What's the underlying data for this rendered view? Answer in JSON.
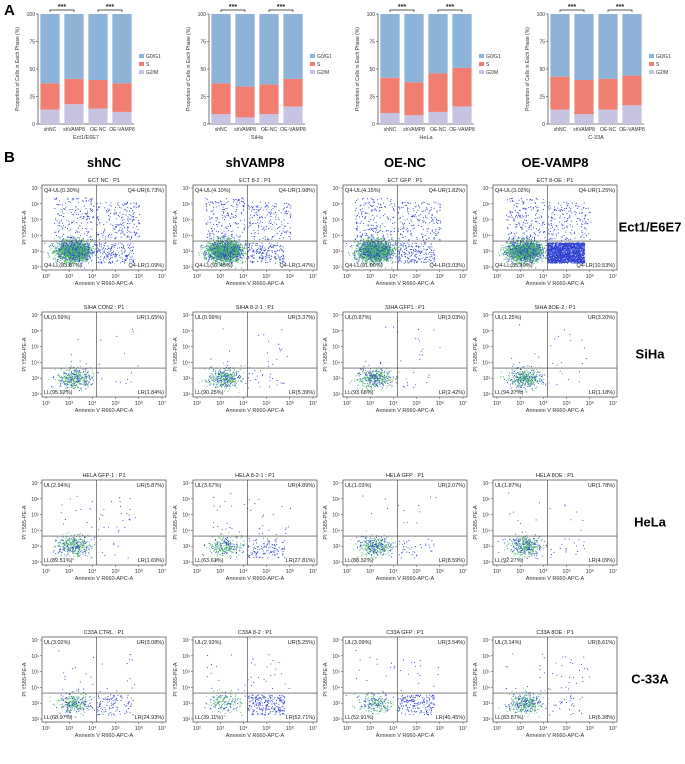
{
  "panels": {
    "a": "A",
    "b": "B"
  },
  "colors": {
    "g0g1": "#8db3d8",
    "s": "#f07f72",
    "g2m": "#c6c3e3",
    "dot": "#2b3fd1",
    "dense": "#4fc06a"
  },
  "chart_data": [
    {
      "type": "bar",
      "stacked": true,
      "name": "Ect1/E6E7",
      "xlabel": "Ect1/E6E7",
      "ylabel": "Proportion of Cells in Each Phase (%)",
      "categories": [
        "shNC",
        "shVAMP8",
        "OE-NC",
        "OE-VAMP8"
      ],
      "ylim": [
        0,
        100
      ],
      "yticks": [
        0,
        25,
        50,
        75,
        100
      ],
      "legend": [
        "G0/G1",
        "S",
        "G2/M"
      ],
      "legend_position": "right",
      "significance": [
        {
          "from": 0,
          "to": 1,
          "label": "***"
        },
        {
          "from": 2,
          "to": 3,
          "label": "***"
        }
      ],
      "series": [
        {
          "name": "G2/M",
          "values": [
            13,
            18,
            14,
            11
          ]
        },
        {
          "name": "S",
          "values": [
            24,
            23,
            26,
            26
          ]
        },
        {
          "name": "G0/G1",
          "values": [
            63,
            59,
            60,
            63
          ]
        }
      ]
    },
    {
      "type": "bar",
      "stacked": true,
      "name": "SiHa",
      "xlabel": "SiHa",
      "ylabel": "Proportion of Cells in Each Phase (%)",
      "categories": [
        "shNC",
        "shVAMP8",
        "OE-NC",
        "OE-VAMP8"
      ],
      "ylim": [
        0,
        100
      ],
      "yticks": [
        0,
        25,
        50,
        75,
        100
      ],
      "legend": [
        "G0/G1",
        "S",
        "G2/M"
      ],
      "legend_position": "right",
      "significance": [
        {
          "from": 0,
          "to": 1,
          "label": "***"
        },
        {
          "from": 2,
          "to": 3,
          "label": "***"
        }
      ],
      "series": [
        {
          "name": "G2/M",
          "values": [
            9,
            6,
            9,
            16
          ]
        },
        {
          "name": "S",
          "values": [
            28,
            28,
            27,
            25
          ]
        },
        {
          "name": "G0/G1",
          "values": [
            63,
            66,
            64,
            59
          ]
        }
      ]
    },
    {
      "type": "bar",
      "stacked": true,
      "name": "HeLa",
      "xlabel": "HeLa",
      "ylabel": "Proportion of Cells in Each Phase (%)",
      "categories": [
        "shNC",
        "shVAMP8",
        "OE-NC",
        "OE-VAMP8"
      ],
      "ylim": [
        0,
        100
      ],
      "yticks": [
        0,
        25,
        50,
        75,
        100
      ],
      "legend": [
        "G0/G1",
        "S",
        "G2/M"
      ],
      "legend_position": "right",
      "significance": [
        {
          "from": 0,
          "to": 1,
          "label": "***"
        },
        {
          "from": 2,
          "to": 3,
          "label": "***"
        }
      ],
      "series": [
        {
          "name": "G2/M",
          "values": [
            10,
            8,
            11,
            16
          ]
        },
        {
          "name": "S",
          "values": [
            32,
            30,
            35,
            35
          ]
        },
        {
          "name": "G0/G1",
          "values": [
            58,
            62,
            54,
            49
          ]
        }
      ]
    },
    {
      "type": "bar",
      "stacked": true,
      "name": "C-33A",
      "xlabel": "C-33A",
      "ylabel": "Proportion of Cells in Each Phase (%)",
      "categories": [
        "shNC",
        "shVAMP8",
        "OE-NC",
        "OE-VAMP8"
      ],
      "ylim": [
        0,
        100
      ],
      "yticks": [
        0,
        25,
        50,
        75,
        100
      ],
      "legend": [
        "G0/G1",
        "S",
        "G2/M"
      ],
      "legend_position": "right",
      "significance": [
        {
          "from": 0,
          "to": 1,
          "label": "***"
        },
        {
          "from": 2,
          "to": 3,
          "label": "***"
        }
      ],
      "series": [
        {
          "name": "G2/M",
          "values": [
            13,
            9,
            13,
            17
          ]
        },
        {
          "name": "S",
          "values": [
            30,
            31,
            28,
            27
          ]
        },
        {
          "name": "G0/G1",
          "values": [
            57,
            60,
            59,
            56
          ]
        }
      ]
    },
    {
      "type": "scatter",
      "name": "flow-cytometry-grid",
      "columns": [
        "shNC",
        "shVAMP8",
        "OE-NC",
        "OE-VAMP8"
      ],
      "rows": [
        {
          "label": "Ect1/E6E7",
          "plots": [
            {
              "title": "ECT NC : P1",
              "quadrants": {
                "ul": "Q4-UL(0.30%)",
                "ur": "Q4-UR(6.73%)",
                "ll": "Q4-LL(83.87%)",
                "lr": "Q4-LR(1.09%)"
              }
            },
            {
              "title": "ECT 8-2 : P1",
              "quadrants": {
                "ul": "Q4-UL(4.10%)",
                "ur": "Q4-UR(1.98%)",
                "ll": "Q4-LL(92.45%)",
                "lr": "Q4-LR(1.47%)"
              }
            },
            {
              "title": "ECT GFP : P1",
              "quadrants": {
                "ul": "Q4-UL(4.15%)",
                "ur": "Q4-UR(1.82%)",
                "ll": "Q4-LL(91.00%)",
                "lr": "Q4-LR(3.03%)"
              }
            },
            {
              "title": "ECT 8-OE : P1",
              "quadrants": {
                "ul": "Q4-UL(3.02%)",
                "ur": "Q4-UR(1.25%)",
                "ll": "Q4-LL(85.19%)",
                "lr": "Q4-LR(10.53%)"
              }
            }
          ]
        },
        {
          "label": "SiHa",
          "plots": [
            {
              "title": "SIHA CON2 : P1",
              "quadrants": {
                "ul": "UL(0.59%)",
                "ur": "UR(1.65%)",
                "ll": "LL(95.92%)",
                "lr": "LR(1.84%)"
              }
            },
            {
              "title": "SIHA 8-2-1 : P1",
              "quadrants": {
                "ul": "UL(0.99%)",
                "ur": "UR(3.37%)",
                "ll": "LL(90.25%)",
                "lr": "LR(5.39%)"
              }
            },
            {
              "title": "SIHA GFP1 : P1",
              "quadrants": {
                "ul": "UL(0.87%)",
                "ur": "UR(3.03%)",
                "ll": "LL(93.68%)",
                "lr": "LR(2.42%)"
              }
            },
            {
              "title": "SIHA 8OE-2 : P1",
              "quadrants": {
                "ul": "UL(1.25%)",
                "ur": "UR(3.20%)",
                "ll": "LL(94.37%)",
                "lr": "LR(1.18%)"
              }
            }
          ]
        },
        {
          "label": "HeLa",
          "plots": [
            {
              "title": "HELA GFP-1 : P1",
              "quadrants": {
                "ul": "UL(2.94%)",
                "ur": "UR(5.87%)",
                "ll": "LL(89.51%)",
                "lr": "LR(1.69%)"
              }
            },
            {
              "title": "HELA 8-2-1 : P1",
              "quadrants": {
                "ul": "UL(3.67%)",
                "ur": "UR(4.89%)",
                "ll": "LL(63.63%)",
                "lr": "LR(27.81%)"
              }
            },
            {
              "title": "HELA GFP : P1",
              "quadrants": {
                "ul": "UL(1.03%)",
                "ur": "UR(2.07%)",
                "ll": "LL(88.32%)",
                "lr": "LR(8.59%)"
              }
            },
            {
              "title": "HELA 8OE : P1",
              "quadrants": {
                "ul": "UL(1.87%)",
                "ur": "UR(1.78%)",
                "ll": "LL(92.27%)",
                "lr": "LR(4.09%)"
              }
            }
          ]
        },
        {
          "label": "C-33A",
          "plots": [
            {
              "title": "C33A CTRL : P1",
              "quadrants": {
                "ul": "UL(3.02%)",
                "ur": "UR(3.08%)",
                "ll": "LL(68.97%)",
                "lr": "LR(24.93%)"
              }
            },
            {
              "title": "C33A 8-2 : P1",
              "quadrants": {
                "ul": "UL(2.93%)",
                "ur": "UR(5.25%)",
                "ll": "LL(39.11%)",
                "lr": "LR(52.71%)"
              }
            },
            {
              "title": "C33A GFP : P1",
              "quadrants": {
                "ul": "UL(3.09%)",
                "ur": "UR(3.54%)",
                "ll": "LL(52.91%)",
                "lr": "LR(40.45%)"
              }
            },
            {
              "title": "C33A 8OE : P1",
              "quadrants": {
                "ul": "UL(3.14%)",
                "ur": "UR(6.61%)",
                "ll": "LL(83.87%)",
                "lr": "LR(6.38%)"
              }
            }
          ]
        }
      ],
      "xlabel": "Annexin V R660-APC-A",
      "ylabel": "PI Y585-PE-A",
      "xticks": [
        "10²",
        "10³",
        "10⁴",
        "10⁵",
        "10⁶",
        "10⁷"
      ],
      "yticks": [
        "10²",
        "10³",
        "10⁴",
        "10⁵",
        "10⁶",
        "10⁷"
      ]
    }
  ]
}
